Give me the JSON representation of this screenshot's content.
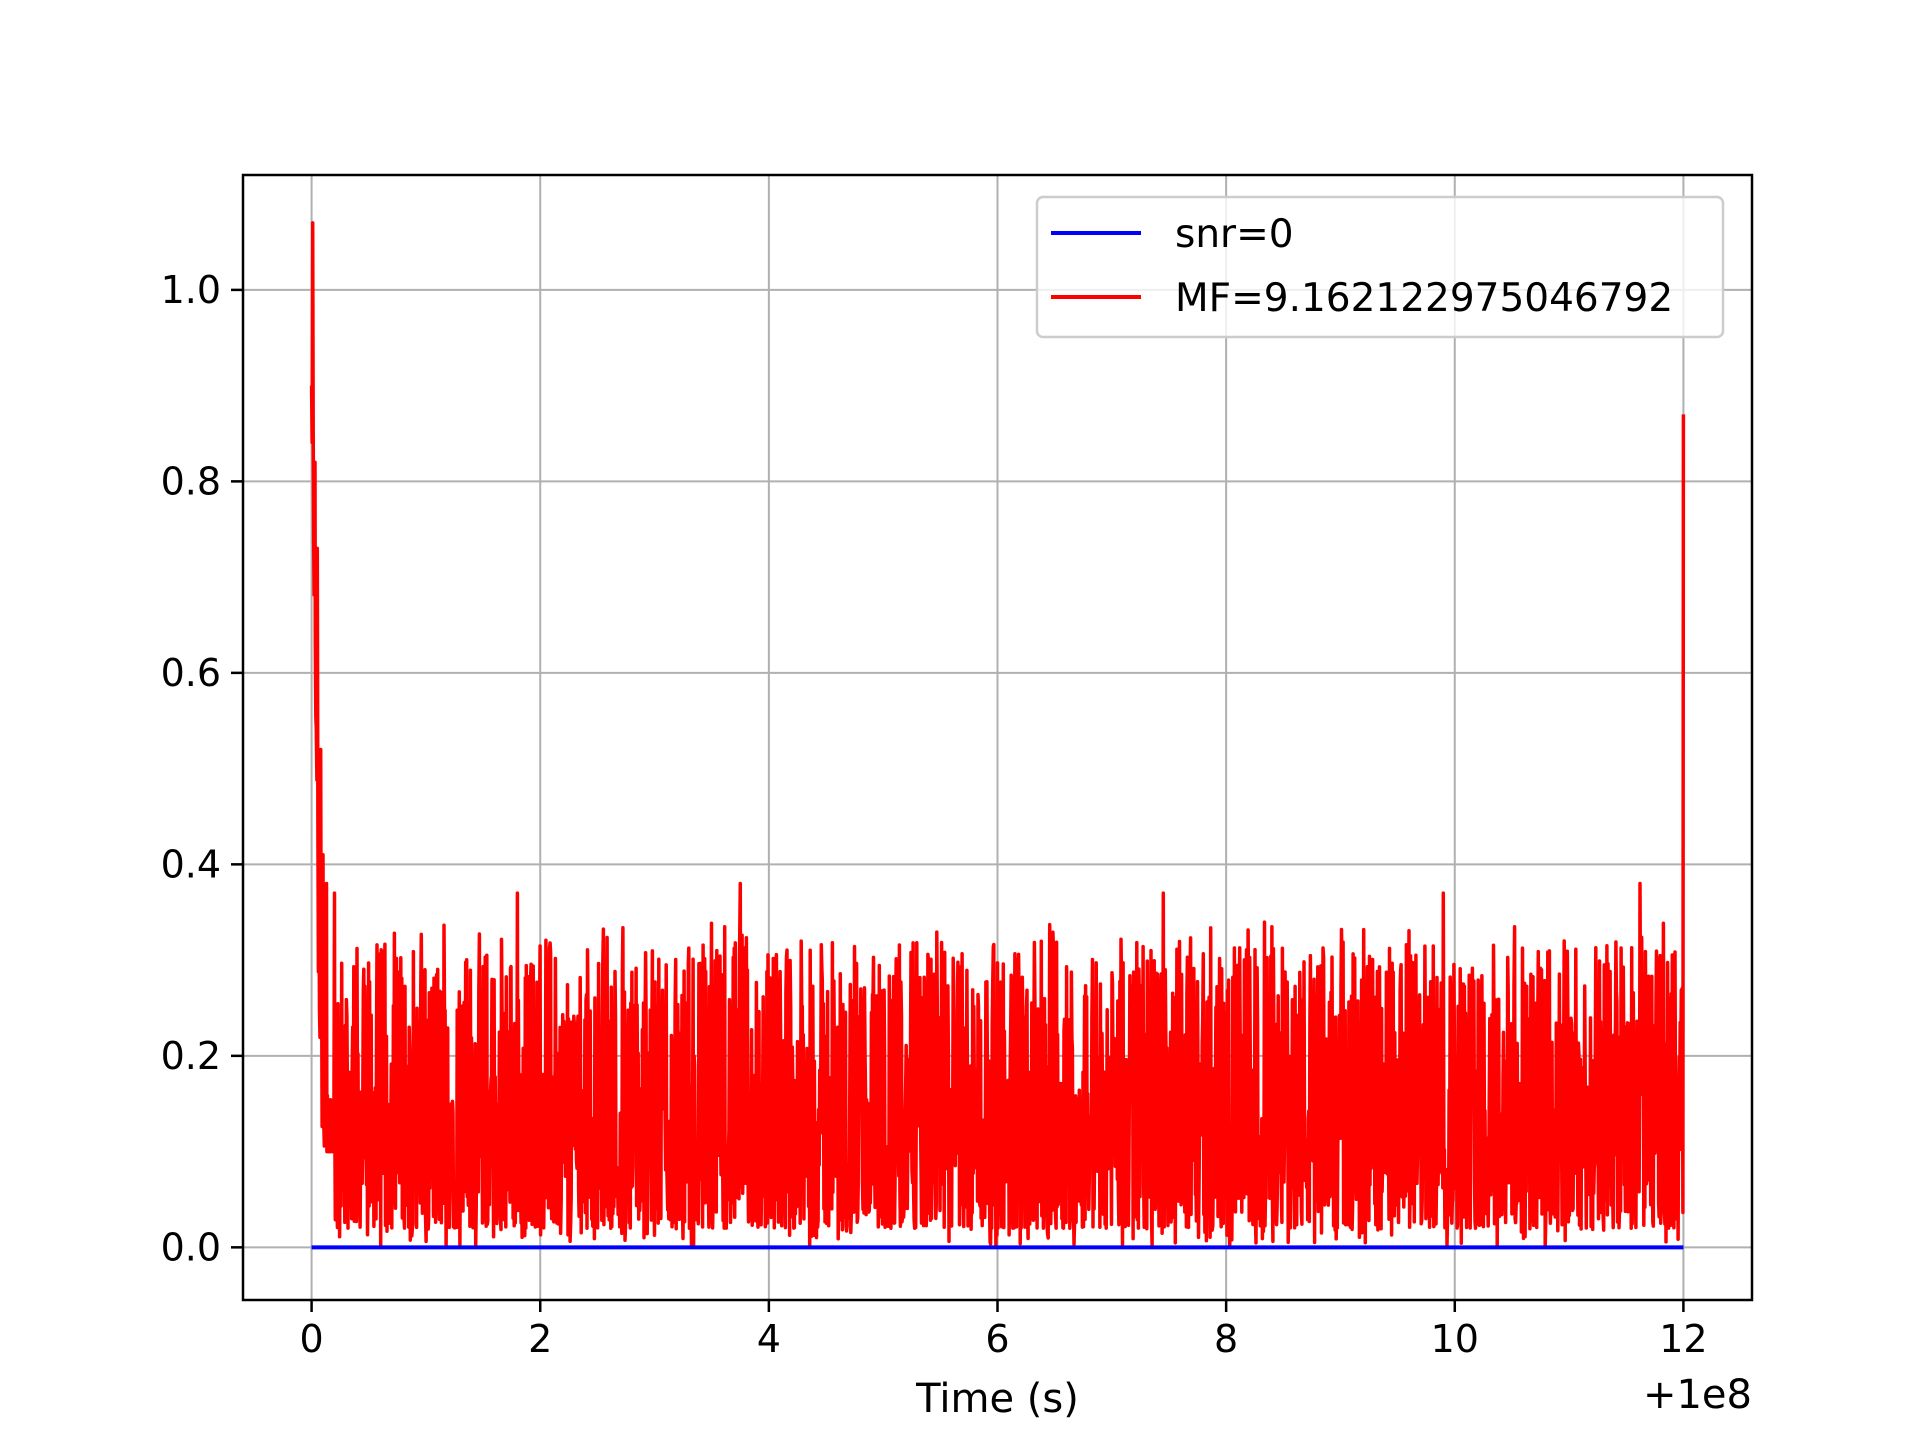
{
  "chart_data": {
    "type": "line",
    "title": "",
    "xlabel": "Time (s)",
    "ylabel": "",
    "x_offset_label": "+1e8",
    "xlim": [
      -0.6,
      12.6
    ],
    "ylim": [
      -0.055,
      1.12
    ],
    "x_ticks": [
      0,
      2,
      4,
      6,
      8,
      10,
      12
    ],
    "x_tick_labels": [
      "0",
      "2",
      "4",
      "6",
      "8",
      "10",
      "12"
    ],
    "y_ticks": [
      0.0,
      0.2,
      0.4,
      0.6,
      0.8,
      1.0
    ],
    "y_tick_labels": [
      "0.0",
      "0.2",
      "0.4",
      "0.6",
      "0.8",
      "1.0"
    ],
    "grid": true,
    "legend_position": "upper-right",
    "series": [
      {
        "name": "snr=0",
        "color": "#0000ff",
        "x": [
          0,
          12
        ],
        "y": [
          0.0,
          0.0
        ]
      },
      {
        "name": "MF=9.162122975046792",
        "color": "#ff0000",
        "x_range": [
          0,
          12
        ],
        "peaks": [
          {
            "x": 0.0,
            "y": 0.9
          },
          {
            "x": 0.01,
            "y": 1.07
          },
          {
            "x": 0.03,
            "y": 0.82
          },
          {
            "x": 0.05,
            "y": 0.73
          },
          {
            "x": 0.08,
            "y": 0.52
          },
          {
            "x": 0.1,
            "y": 0.41
          },
          {
            "x": 0.13,
            "y": 0.38
          },
          {
            "x": 0.2,
            "y": 0.37
          },
          {
            "x": 1.8,
            "y": 0.37
          },
          {
            "x": 3.75,
            "y": 0.38
          },
          {
            "x": 7.45,
            "y": 0.37
          },
          {
            "x": 9.9,
            "y": 0.37
          },
          {
            "x": 11.62,
            "y": 0.38
          },
          {
            "x": 11.95,
            "y": 0.11
          },
          {
            "x": 12.0,
            "y": 0.87
          }
        ],
        "noise_band": {
          "min": 0.0,
          "typical_max": 0.3,
          "max": 0.38
        }
      }
    ]
  }
}
